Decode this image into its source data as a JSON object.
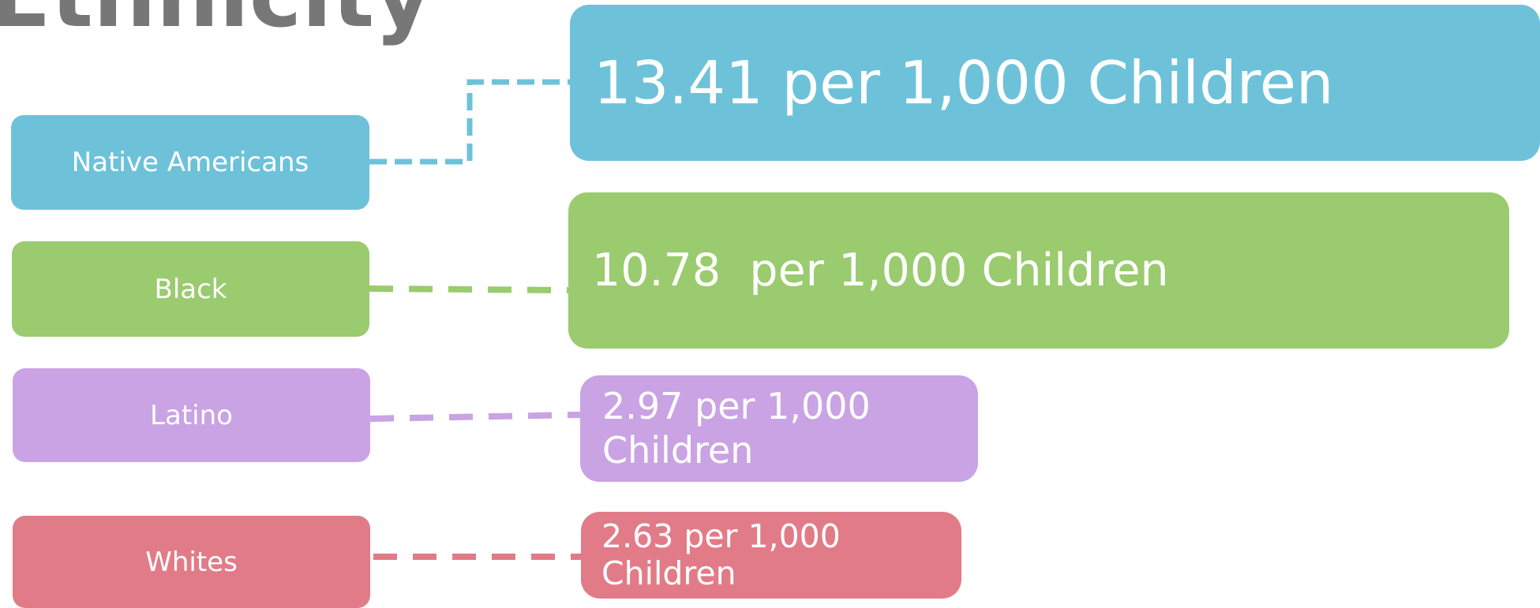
{
  "title": "Ethnicity",
  "rows": [
    {
      "label": "Native Americans",
      "value": "13.41 per 1,000 Children"
    },
    {
      "label": "Black",
      "value": "10.78  per 1,000 Children"
    },
    {
      "label": "Latino",
      "value": "2.97 per 1,000 Children"
    },
    {
      "label": "Whites",
      "value": "2.63 per 1,000 Children"
    }
  ]
}
